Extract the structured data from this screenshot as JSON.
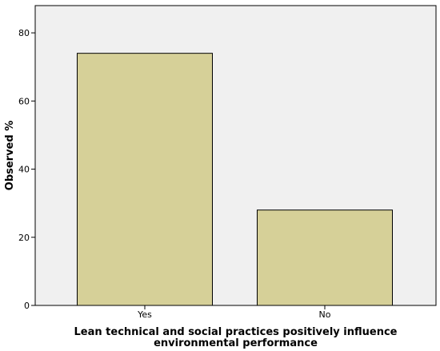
{
  "chart_data": {
    "type": "bar",
    "categories": [
      "Yes",
      "No"
    ],
    "values": [
      74,
      28
    ],
    "xlabel_lines": [
      "Lean technical and social practices positively influence",
      "environmental performance"
    ],
    "ylabel": "Observed %",
    "ylim": [
      0,
      88
    ],
    "yticks": [
      0,
      20,
      40,
      60,
      80
    ],
    "grid": false,
    "colors": {
      "plot_background": "#f0f0f0",
      "bar_fill": "#d6d098",
      "bar_stroke": "#000000"
    }
  }
}
